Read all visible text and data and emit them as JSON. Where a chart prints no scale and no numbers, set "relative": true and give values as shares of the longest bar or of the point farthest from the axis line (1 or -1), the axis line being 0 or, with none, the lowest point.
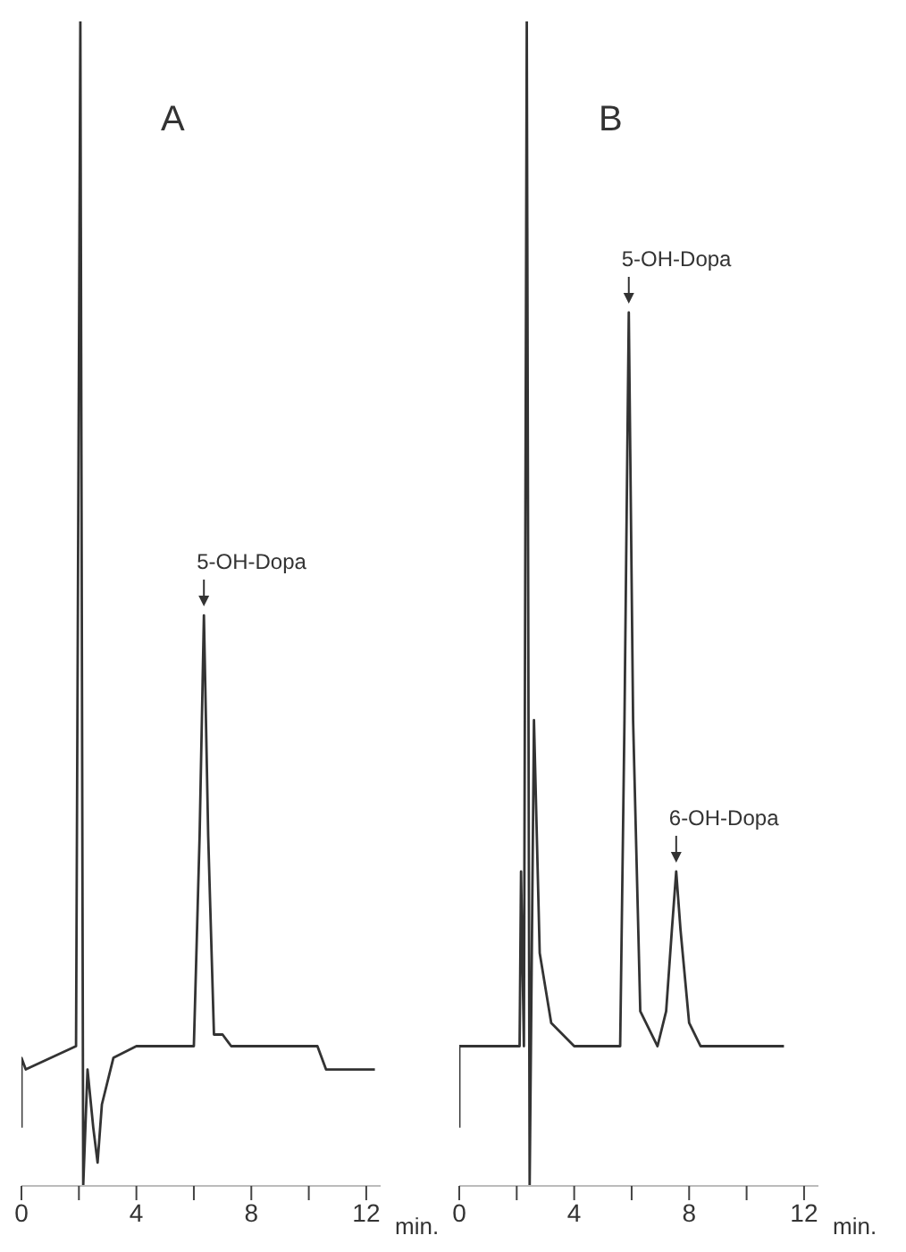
{
  "chart_data": [
    {
      "type": "line",
      "title": "A",
      "xlabel": "min.",
      "relative": true,
      "marker": "none",
      "line_style": "solid",
      "grid": false,
      "legend": false,
      "xlim": [
        0,
        12.5
      ],
      "xticks": [
        0,
        {
          "value": 2,
          "label": null
        },
        4,
        {
          "value": 6,
          "label": null
        },
        8,
        {
          "value": 10,
          "label": null
        },
        12
      ],
      "tick_labels": "x",
      "annotations": [
        {
          "text": "5-OH-Dopa",
          "x": 6.35,
          "y": 0.49
        }
      ],
      "series": [
        {
          "color": "#333333",
          "x": [
            0,
            0,
            0.15,
            1.9,
            2.05,
            2.15,
            2.3,
            2.5,
            2.65,
            2.8,
            3.2,
            4,
            6.0,
            6.2,
            6.35,
            6.5,
            6.7,
            7.0,
            7.3,
            10.3,
            10.6,
            12.3
          ],
          "values": [
            0.05,
            0.11,
            0.1,
            0.12,
            1,
            0,
            0.1,
            0.05,
            0.02,
            0.07,
            0.11,
            0.12,
            0.12,
            0.3,
            0.49,
            0.3,
            0.13,
            0.13,
            0.12,
            0.12,
            0.1,
            0.1
          ]
        }
      ]
    },
    {
      "type": "line",
      "title": "B",
      "xlabel": "min.",
      "relative": true,
      "marker": "none",
      "line_style": "solid",
      "grid": false,
      "legend": false,
      "xlim": [
        0,
        12.5
      ],
      "xticks": [
        0,
        {
          "value": 2,
          "label": null
        },
        4,
        {
          "value": 6,
          "label": null
        },
        8,
        {
          "value": 10,
          "label": null
        },
        12
      ],
      "tick_labels": "x",
      "annotations": [
        {
          "text": "5-OH-Dopa",
          "x": 5.9,
          "y": 0.75
        },
        {
          "text": "6-OH-Dopa",
          "x": 7.55,
          "y": 0.27
        }
      ],
      "series": [
        {
          "color": "#333333",
          "x": [
            0,
            0,
            2.1,
            2.15,
            2.25,
            2.35,
            2.45,
            2.6,
            2.8,
            3.2,
            4,
            5.6,
            5.75,
            5.9,
            6.05,
            6.3,
            6.9,
            7.2,
            7.4,
            7.55,
            7.7,
            8.0,
            8.4,
            11.3
          ],
          "values": [
            0.05,
            0.12,
            0.12,
            0.27,
            0.12,
            1,
            0,
            0.4,
            0.2,
            0.14,
            0.12,
            0.12,
            0.4,
            0.75,
            0.4,
            0.15,
            0.12,
            0.15,
            0.22,
            0.27,
            0.22,
            0.14,
            0.12,
            0.12
          ]
        }
      ]
    }
  ]
}
